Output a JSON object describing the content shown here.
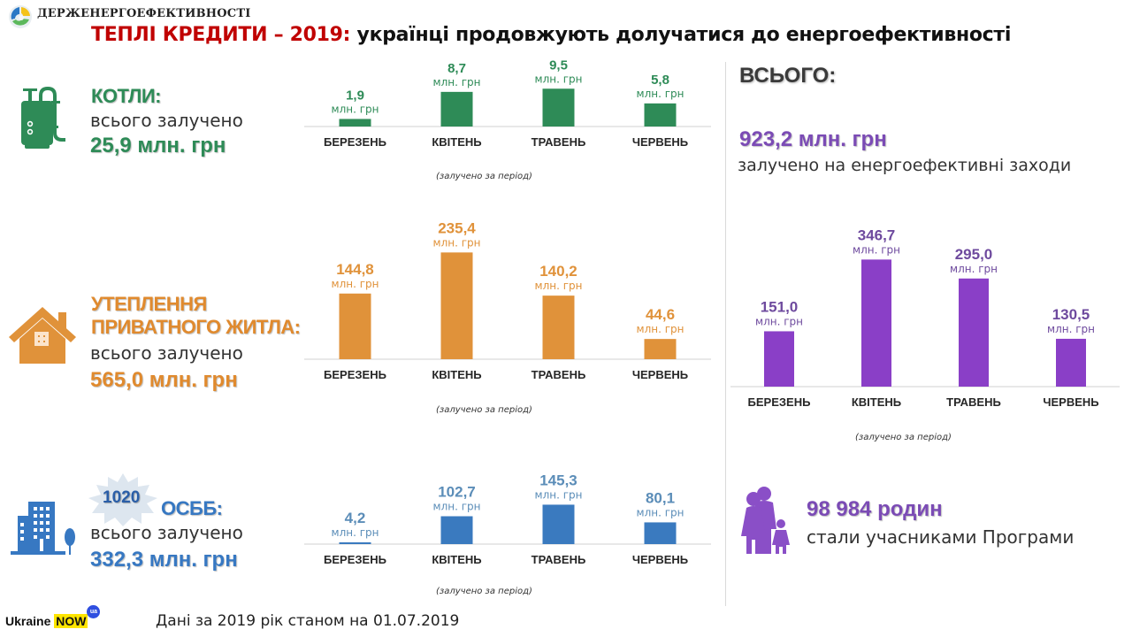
{
  "header": {
    "org_name": "ДЕРЖЕНЕРГОЕФЕКТИВНОСТІ",
    "title_highlight": "ТЕПЛІ КРЕДИТИ – 2019:",
    "title_rest": " українці продовжують долучатися до енергоефективності"
  },
  "colors": {
    "green": "#2e8b57",
    "orange": "#e0923a",
    "blue": "#3a7abf",
    "purple": "#8a3fc7",
    "title_red": "#c00000"
  },
  "sections": {
    "boilers": {
      "title": "КОТЛИ:",
      "subtitle": "всього залучено",
      "total": "25,9 млн. грн",
      "icon": "boiler-icon"
    },
    "houses": {
      "title_line1": "УТЕПЛЕННЯ",
      "title_line2": "ПРИВАТНОГО ЖИТЛА:",
      "subtitle": "всього залучено",
      "total": "565,0 млн. грн",
      "icon": "house-icon"
    },
    "osbb": {
      "badge": "1020",
      "title": "ОСББ:",
      "subtitle": "всього залучено",
      "total": "332,3 млн. грн",
      "icon": "apartment-building-icon"
    }
  },
  "totals": {
    "heading": "ВСЬОГО:",
    "value": "923,2 млн. грн",
    "subtitle": "залучено на енергоефективні заходи",
    "families_value": "98 984 родин",
    "families_subtitle": "стали учасниками Програми",
    "families_icon": "family-icon"
  },
  "footer": {
    "note": "Дані за 2019 рік станом на 01.07.2019",
    "brand_word": "Ukraine",
    "brand_now": "NOW",
    "brand_ua": "ua"
  },
  "chart_data": [
    {
      "type": "bar",
      "name": "boilers",
      "title": "",
      "categories": [
        "БЕРЕЗЕНЬ",
        "КВІТЕНЬ",
        "ТРАВЕНЬ",
        "ЧЕРВЕНЬ"
      ],
      "values": [
        1.9,
        8.7,
        9.5,
        5.8
      ],
      "value_labels": [
        "1,9",
        "8,7",
        "9,5",
        "5,8"
      ],
      "unit_label": "млн. грн",
      "note": "(залучено за період)",
      "color": "#2e8b57",
      "xlabel": "",
      "ylabel": "",
      "ylim": [
        0,
        10
      ]
    },
    {
      "type": "bar",
      "name": "houses",
      "title": "",
      "categories": [
        "БЕРЕЗЕНЬ",
        "КВІТЕНЬ",
        "ТРАВЕНЬ",
        "ЧЕРВЕНЬ"
      ],
      "values": [
        144.8,
        235.4,
        140.2,
        44.6
      ],
      "value_labels": [
        "144,8",
        "235,4",
        "140,2",
        "44,6"
      ],
      "unit_label": "млн. грн",
      "note": "(залучено за період)",
      "color": "#e0923a",
      "xlabel": "",
      "ylabel": "",
      "ylim": [
        0,
        240
      ]
    },
    {
      "type": "bar",
      "name": "osbb",
      "title": "",
      "categories": [
        "БЕРЕЗЕНЬ",
        "КВІТЕНЬ",
        "ТРАВЕНЬ",
        "ЧЕРВЕНЬ"
      ],
      "values": [
        4.2,
        102.7,
        145.3,
        80.1
      ],
      "value_labels": [
        "4,2",
        "102,7",
        "145,3",
        "80,1"
      ],
      "unit_label": "млн. грн",
      "note": "(залучено за період)",
      "color": "#3a7abf",
      "label_color": "#5b8db8",
      "xlabel": "",
      "ylabel": "",
      "ylim": [
        0,
        150
      ]
    },
    {
      "type": "bar",
      "name": "total",
      "title": "",
      "categories": [
        "БЕРЕЗЕНЬ",
        "КВІТЕНЬ",
        "ТРАВЕНЬ",
        "ЧЕРВЕНЬ"
      ],
      "values": [
        151.0,
        346.7,
        295.0,
        130.5
      ],
      "value_labels": [
        "151,0",
        "346,7",
        "295,0",
        "130,5"
      ],
      "unit_label": "млн. грн",
      "note": "(залучено за період)",
      "color": "#8a3fc7",
      "label_color": "#6e4a9e",
      "xlabel": "",
      "ylabel": "",
      "ylim": [
        0,
        350
      ]
    }
  ]
}
